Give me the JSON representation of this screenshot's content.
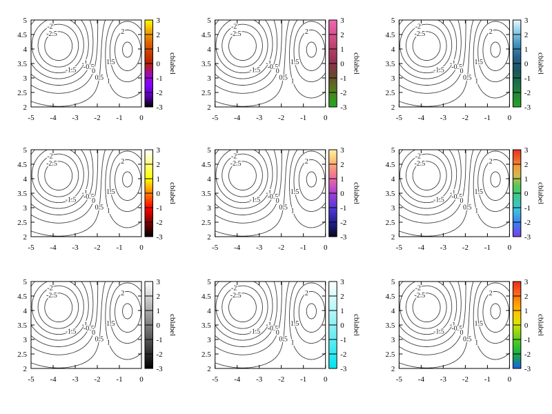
{
  "figure": {
    "background": "#ffffff"
  },
  "chart_data": {
    "type": "contour",
    "layout": "3x3-multiplot",
    "title": "",
    "x": {
      "range": [
        -5,
        0
      ],
      "ticks": [
        -5,
        -4,
        -3,
        -2,
        -1,
        0
      ]
    },
    "y": {
      "range": [
        2,
        5
      ],
      "ticks": [
        2,
        2.5,
        3,
        3.5,
        4,
        4.5,
        5
      ]
    },
    "colorbar": {
      "range": [
        -3,
        3
      ],
      "ticks": [
        -3,
        -2,
        -1,
        0,
        1,
        2,
        3
      ],
      "label": "cblabel"
    },
    "contours": {
      "levels": [
        -2.5,
        -2,
        -1.5,
        -1,
        -0.5,
        0,
        0.5,
        1,
        1.5,
        2,
        2.5
      ],
      "line_color": "#3c3c3c"
    },
    "field": {
      "description": "z(x,y)=base+slope*(y0-y)+sum(amp*exp(-((x-cx)/sx)^2-((y-cy)/sy)^2)); saddle between a negative well near (-3.75,4.05) and a positive peak near (-0.68,4.05); z spans about -3..2.7",
      "background": {
        "base": 0.3,
        "slope": 0.2,
        "y0": 4.05
      },
      "bumps": [
        {
          "amp": -3.3,
          "cx": -3.75,
          "sx": 1.55,
          "cy": 4.05,
          "sy": 1.22
        },
        {
          "amp": 2.35,
          "cx": -0.68,
          "sx": 1.15,
          "cy": 4.05,
          "sy": 1.27
        }
      ]
    },
    "subplots": [
      {
        "row": 0,
        "col": 0,
        "palette": "pm3d-default-black-purple-red-yellow",
        "stops": [
          [
            0,
            "#000000"
          ],
          [
            0.125,
            "#5a00b4"
          ],
          [
            0.25,
            "#8004ff"
          ],
          [
            0.375,
            "#9c0db4"
          ],
          [
            0.5,
            "#b52000"
          ],
          [
            0.625,
            "#ca3e00"
          ],
          [
            0.75,
            "#dd6b00"
          ],
          [
            0.875,
            "#efab00"
          ],
          [
            1,
            "#ffff00"
          ]
        ]
      },
      {
        "row": 0,
        "col": 1,
        "palette": "green-to-pink",
        "stops": [
          [
            0,
            "#1faa1f"
          ],
          [
            0.2,
            "#557a1e"
          ],
          [
            0.38,
            "#6e4430"
          ],
          [
            0.5,
            "#8f3350"
          ],
          [
            0.65,
            "#b23a66"
          ],
          [
            0.8,
            "#cf4f86"
          ],
          [
            1,
            "#f266b2"
          ]
        ]
      },
      {
        "row": 0,
        "col": 2,
        "palette": "green-blue-white",
        "stops": [
          [
            0,
            "#27a327"
          ],
          [
            0.22,
            "#1e7a40"
          ],
          [
            0.42,
            "#1a5560"
          ],
          [
            0.58,
            "#27648e"
          ],
          [
            0.72,
            "#4492c0"
          ],
          [
            0.88,
            "#96d2ec"
          ],
          [
            1,
            "#e6f8ff"
          ]
        ]
      },
      {
        "row": 1,
        "col": 0,
        "palette": "hot-black-red-yellow-white",
        "stops": [
          [
            0,
            "#000000"
          ],
          [
            0.33,
            "#ff0000"
          ],
          [
            0.67,
            "#ffff00"
          ],
          [
            1,
            "#ffffff"
          ]
        ]
      },
      {
        "row": 1,
        "col": 1,
        "palette": "black-blue-violet-pink-cream",
        "stops": [
          [
            0,
            "#08081f"
          ],
          [
            0.16,
            "#1f1f8f"
          ],
          [
            0.33,
            "#5438d8"
          ],
          [
            0.48,
            "#9a3fd8"
          ],
          [
            0.62,
            "#dd5cb4"
          ],
          [
            0.76,
            "#f98a80"
          ],
          [
            0.88,
            "#ffc378"
          ],
          [
            1,
            "#fff2a0"
          ]
        ]
      },
      {
        "row": 1,
        "col": 2,
        "palette": "rainbow-violet-to-red",
        "stops": [
          [
            0,
            "#7a3fe8"
          ],
          [
            0.15,
            "#3b7df0"
          ],
          [
            0.3,
            "#3fbfe0"
          ],
          [
            0.45,
            "#3cc896"
          ],
          [
            0.58,
            "#55c955"
          ],
          [
            0.7,
            "#cdbb50"
          ],
          [
            0.8,
            "#f09f3c"
          ],
          [
            0.9,
            "#ee5f28"
          ],
          [
            1,
            "#e63323"
          ]
        ]
      },
      {
        "row": 2,
        "col": 0,
        "palette": "grayscale-black-white",
        "stops": [
          [
            0,
            "#000000"
          ],
          [
            1,
            "#ffffff"
          ]
        ]
      },
      {
        "row": 2,
        "col": 1,
        "palette": "cyan-to-white",
        "stops": [
          [
            0,
            "#00e4ee"
          ],
          [
            0.5,
            "#8ff2f6"
          ],
          [
            1,
            "#ffffff"
          ]
        ]
      },
      {
        "row": 2,
        "col": 2,
        "palette": "jet-blue-green-yellow-red",
        "stops": [
          [
            0,
            "#1b5ef0"
          ],
          [
            0.13,
            "#169e56"
          ],
          [
            0.26,
            "#33c62c"
          ],
          [
            0.4,
            "#8ad414"
          ],
          [
            0.52,
            "#dce400"
          ],
          [
            0.64,
            "#ffc400"
          ],
          [
            0.76,
            "#ff9600"
          ],
          [
            0.88,
            "#ff5c1e"
          ],
          [
            1,
            "#e92d1a"
          ]
        ]
      }
    ]
  }
}
